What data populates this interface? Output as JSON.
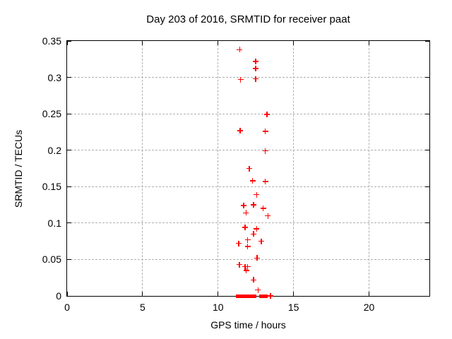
{
  "figure": {
    "background": "#ffffff",
    "border_color": "#000000",
    "grid_color": "#b0b0b0",
    "text_color": "#000000"
  },
  "chart_data": {
    "type": "scatter",
    "title": "Day 203 of 2016, SRMTID for receiver paat",
    "xlabel": "GPS time / hours",
    "ylabel": "SRMTID / TECUs",
    "xlim": [
      0,
      24
    ],
    "ylim": [
      0,
      0.35
    ],
    "grid": true,
    "legend": "none",
    "marker": "plus",
    "marker_color": "#ff0000",
    "xticks": [
      {
        "v": 0,
        "label": "0"
      },
      {
        "v": 5,
        "label": "5"
      },
      {
        "v": 10,
        "label": "10"
      },
      {
        "v": 15,
        "label": "15"
      },
      {
        "v": 20,
        "label": "20"
      }
    ],
    "yticks": [
      {
        "v": 0,
        "label": "0"
      },
      {
        "v": 0.05,
        "label": "0.05"
      },
      {
        "v": 0.1,
        "label": "0.1"
      },
      {
        "v": 0.15,
        "label": "0.15"
      },
      {
        "v": 0.2,
        "label": "0.2"
      },
      {
        "v": 0.25,
        "label": "0.25"
      },
      {
        "v": 0.3,
        "label": "0.3"
      },
      {
        "v": 0.35,
        "label": "0.35"
      }
    ],
    "series": [
      {
        "name": "SRMTID",
        "color": "#ff0000",
        "points": [
          [
            11.43,
            0.338
          ],
          [
            12.48,
            0.322
          ],
          [
            12.48,
            0.312
          ],
          [
            11.49,
            0.297
          ],
          [
            12.48,
            0.298
          ],
          [
            13.23,
            0.249
          ],
          [
            11.46,
            0.227
          ],
          [
            13.13,
            0.226
          ],
          [
            13.13,
            0.199
          ],
          [
            12.06,
            0.175
          ],
          [
            12.29,
            0.158
          ],
          [
            13.13,
            0.157
          ],
          [
            12.55,
            0.139
          ],
          [
            11.7,
            0.124
          ],
          [
            12.36,
            0.125
          ],
          [
            12.99,
            0.12
          ],
          [
            11.85,
            0.114
          ],
          [
            13.3,
            0.11
          ],
          [
            11.8,
            0.094
          ],
          [
            12.55,
            0.092
          ],
          [
            12.36,
            0.085
          ],
          [
            11.96,
            0.077
          ],
          [
            12.87,
            0.075
          ],
          [
            11.38,
            0.072
          ],
          [
            11.96,
            0.068
          ],
          [
            12.58,
            0.052
          ],
          [
            11.42,
            0.043
          ],
          [
            11.78,
            0.04
          ],
          [
            11.96,
            0.04
          ],
          [
            11.87,
            0.035
          ],
          [
            12.36,
            0.022
          ],
          [
            12.65,
            0.008
          ],
          [
            13.47,
            0.0
          ]
        ],
        "zero_value_runs": [
          {
            "from": 11.19,
            "to": 12.52
          },
          {
            "from": 12.71,
            "to": 13.3
          }
        ]
      }
    ]
  }
}
